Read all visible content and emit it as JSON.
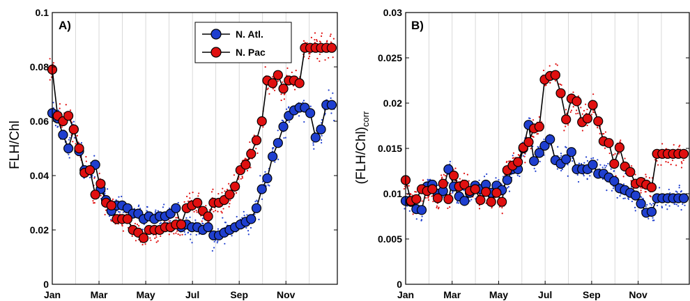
{
  "legend": {
    "items": [
      {
        "label": "N. Atl.",
        "color": "#1f3fcf"
      },
      {
        "label": "N. Pac",
        "color": "#e01010"
      }
    ]
  },
  "chart_data": [
    {
      "type": "line",
      "panel_label": "A)",
      "ylabel": "FLH/Chl",
      "xlim": [
        0,
        12.2
      ],
      "ylim": [
        0,
        0.1
      ],
      "xticks": {
        "values": [
          0,
          2,
          4,
          6,
          8,
          10
        ],
        "labels": [
          "Jan",
          "Mar",
          "May",
          "Jul",
          "Sep",
          "Nov"
        ]
      },
      "yticks": {
        "values": [
          0,
          0.02,
          0.04,
          0.06,
          0.08,
          0.1
        ],
        "labels": [
          "0",
          "0.02",
          "0.04",
          "0.06",
          "0.08",
          "0.1"
        ]
      },
      "grid": "vertical-monthly",
      "legend_position": "top-right",
      "series": [
        {
          "name": "N. Atl.",
          "color": "#1f3fcf",
          "x": [
            0.0,
            0.23,
            0.46,
            0.69,
            0.92,
            1.15,
            1.38,
            1.61,
            1.84,
            2.07,
            2.3,
            2.53,
            2.76,
            2.99,
            3.22,
            3.45,
            3.68,
            3.91,
            4.14,
            4.37,
            4.6,
            4.83,
            5.06,
            5.29,
            5.52,
            5.75,
            5.98,
            6.21,
            6.44,
            6.67,
            6.9,
            7.13,
            7.36,
            7.59,
            7.82,
            8.05,
            8.28,
            8.51,
            8.74,
            8.97,
            9.2,
            9.43,
            9.66,
            9.89,
            10.12,
            10.35,
            10.58,
            10.81,
            11.04,
            11.27,
            11.5,
            11.73,
            11.96
          ],
          "y": [
            0.063,
            0.061,
            0.055,
            0.05,
            0.057,
            0.049,
            0.042,
            0.042,
            0.044,
            0.035,
            0.031,
            0.027,
            0.029,
            0.029,
            0.028,
            0.026,
            0.026,
            0.024,
            0.025,
            0.024,
            0.025,
            0.025,
            0.026,
            0.028,
            0.021,
            0.022,
            0.021,
            0.021,
            0.02,
            0.021,
            0.018,
            0.018,
            0.019,
            0.02,
            0.021,
            0.022,
            0.023,
            0.024,
            0.028,
            0.035,
            0.039,
            0.047,
            0.052,
            0.058,
            0.062,
            0.064,
            0.065,
            0.065,
            0.063,
            0.054,
            0.057,
            0.066,
            0.066
          ]
        },
        {
          "name": "N. Pac",
          "color": "#e01010",
          "x": [
            0.0,
            0.23,
            0.46,
            0.69,
            0.92,
            1.15,
            1.38,
            1.61,
            1.84,
            2.07,
            2.3,
            2.53,
            2.76,
            2.99,
            3.22,
            3.45,
            3.68,
            3.91,
            4.14,
            4.37,
            4.6,
            4.83,
            5.06,
            5.29,
            5.52,
            5.75,
            5.98,
            6.21,
            6.44,
            6.67,
            6.9,
            7.13,
            7.36,
            7.59,
            7.82,
            8.05,
            8.28,
            8.51,
            8.74,
            8.97,
            9.2,
            9.43,
            9.66,
            9.89,
            10.12,
            10.35,
            10.58,
            10.81,
            11.04,
            11.27,
            11.5,
            11.73,
            11.96
          ],
          "y": [
            0.079,
            0.062,
            0.06,
            0.062,
            0.057,
            0.05,
            0.041,
            0.042,
            0.033,
            0.037,
            0.03,
            0.029,
            0.024,
            0.024,
            0.024,
            0.02,
            0.019,
            0.017,
            0.02,
            0.02,
            0.02,
            0.021,
            0.021,
            0.022,
            0.022,
            0.028,
            0.029,
            0.03,
            0.027,
            0.025,
            0.03,
            0.03,
            0.031,
            0.033,
            0.036,
            0.042,
            0.044,
            0.048,
            0.053,
            0.06,
            0.075,
            0.074,
            0.077,
            0.072,
            0.075,
            0.075,
            0.074,
            0.087,
            0.087,
            0.087,
            0.087,
            0.087,
            0.087
          ]
        }
      ]
    },
    {
      "type": "line",
      "panel_label": "B)",
      "ylabel": "(FLH/Chl)",
      "ylabel_subscript": "corr",
      "xlim": [
        0,
        12.2
      ],
      "ylim": [
        0,
        0.03
      ],
      "xticks": {
        "values": [
          0,
          2,
          4,
          6,
          8,
          10
        ],
        "labels": [
          "Jan",
          "Mar",
          "May",
          "Jul",
          "Sep",
          "Nov"
        ]
      },
      "yticks": {
        "values": [
          0,
          0.005,
          0.01,
          0.015,
          0.02,
          0.025,
          0.03
        ],
        "labels": [
          "0",
          "0.005",
          "0.01",
          "0.015",
          "0.02",
          "0.025",
          "0.03"
        ]
      },
      "grid": "vertical-monthly",
      "series": [
        {
          "name": "N. Atl.",
          "color": "#1f3fcf",
          "x": [
            0.0,
            0.23,
            0.46,
            0.69,
            0.92,
            1.15,
            1.38,
            1.61,
            1.84,
            2.07,
            2.3,
            2.53,
            2.76,
            2.99,
            3.22,
            3.45,
            3.68,
            3.91,
            4.14,
            4.37,
            4.6,
            4.83,
            5.06,
            5.29,
            5.52,
            5.75,
            5.98,
            6.21,
            6.44,
            6.67,
            6.9,
            7.13,
            7.36,
            7.59,
            7.82,
            8.05,
            8.28,
            8.51,
            8.74,
            8.97,
            9.2,
            9.43,
            9.66,
            9.89,
            10.12,
            10.35,
            10.58,
            10.81,
            11.04,
            11.27,
            11.5,
            11.73,
            11.96
          ],
          "y": [
            0.0092,
            0.0091,
            0.0083,
            0.0082,
            0.0108,
            0.011,
            0.01,
            0.0103,
            0.0127,
            0.0108,
            0.0097,
            0.0092,
            0.0101,
            0.0109,
            0.0105,
            0.011,
            0.0101,
            0.0109,
            0.0104,
            0.0115,
            0.0127,
            0.0127,
            0.015,
            0.0176,
            0.0136,
            0.0145,
            0.0153,
            0.016,
            0.0137,
            0.0133,
            0.0138,
            0.0146,
            0.0127,
            0.0127,
            0.0127,
            0.0132,
            0.0122,
            0.0122,
            0.0118,
            0.0114,
            0.0106,
            0.0104,
            0.0101,
            0.0098,
            0.0089,
            0.0079,
            0.008,
            0.0095,
            0.0095,
            0.0095,
            0.0095,
            0.0095,
            0.0095
          ]
        },
        {
          "name": "N. Pac",
          "color": "#e01010",
          "x": [
            0.0,
            0.23,
            0.46,
            0.69,
            0.92,
            1.15,
            1.38,
            1.61,
            1.84,
            2.07,
            2.3,
            2.53,
            2.76,
            2.99,
            3.22,
            3.45,
            3.68,
            3.91,
            4.14,
            4.37,
            4.6,
            4.83,
            5.06,
            5.29,
            5.52,
            5.75,
            5.98,
            6.21,
            6.44,
            6.67,
            6.9,
            7.13,
            7.36,
            7.59,
            7.82,
            8.05,
            8.28,
            8.51,
            8.74,
            8.97,
            9.2,
            9.43,
            9.66,
            9.89,
            10.12,
            10.35,
            10.58,
            10.81,
            11.04,
            11.27,
            11.5,
            11.73,
            11.96
          ],
          "y": [
            0.0115,
            0.0092,
            0.0094,
            0.0105,
            0.0103,
            0.0105,
            0.0095,
            0.0111,
            0.0094,
            0.012,
            0.0108,
            0.011,
            0.0103,
            0.0105,
            0.0093,
            0.0102,
            0.0091,
            0.0101,
            0.0091,
            0.0126,
            0.0131,
            0.0135,
            0.0151,
            0.0157,
            0.0172,
            0.0174,
            0.0226,
            0.023,
            0.0231,
            0.0211,
            0.0182,
            0.0205,
            0.0202,
            0.0179,
            0.0183,
            0.0198,
            0.018,
            0.0158,
            0.0156,
            0.0133,
            0.0151,
            0.013,
            0.0124,
            0.0111,
            0.0113,
            0.011,
            0.0107,
            0.0144,
            0.0144,
            0.0144,
            0.0144,
            0.0144,
            0.0144
          ]
        }
      ]
    }
  ]
}
